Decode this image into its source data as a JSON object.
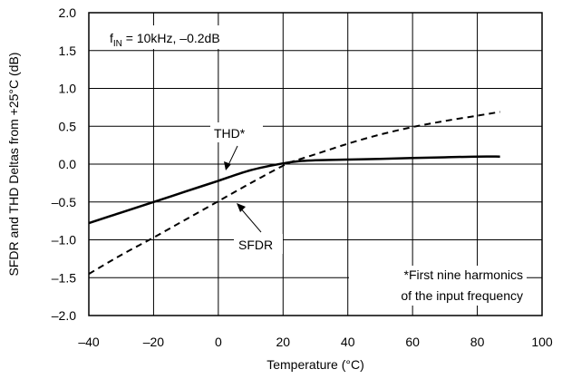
{
  "chart_data": {
    "type": "line",
    "title": "",
    "xlabel": "Temperature (°C)",
    "ylabel": "SFDR and THD Deltas from +25°C (dB)",
    "xlim": [
      -40,
      100
    ],
    "ylim": [
      -2.0,
      2.0
    ],
    "x_ticks": [
      -40,
      -20,
      0,
      20,
      40,
      60,
      80,
      100
    ],
    "y_ticks": [
      -2.0,
      -1.5,
      -1.0,
      -0.5,
      0.0,
      0.5,
      1.0,
      1.5,
      2.0
    ],
    "x_tick_labels": [
      "–40",
      "–20",
      "0",
      "20",
      "40",
      "60",
      "80",
      "100"
    ],
    "y_tick_labels": [
      "–2.0",
      "–1.5",
      "–1.0",
      "–0.5",
      "0.0",
      "0.5",
      "1.0",
      "1.5",
      "2.0"
    ],
    "grid": true,
    "series": [
      {
        "name": "THD*",
        "style": "solid",
        "color": "#000000",
        "x": [
          -40,
          -30,
          -20,
          -10,
          0,
          10,
          20,
          25,
          30,
          40,
          50,
          60,
          70,
          80,
          87
        ],
        "y": [
          -0.78,
          -0.64,
          -0.5,
          -0.36,
          -0.22,
          -0.08,
          0.01,
          0.04,
          0.05,
          0.06,
          0.07,
          0.08,
          0.09,
          0.1,
          0.1
        ]
      },
      {
        "name": "SFDR",
        "style": "dashed",
        "color": "#000000",
        "x": [
          -40,
          -30,
          -20,
          -10,
          0,
          10,
          20,
          22,
          30,
          40,
          50,
          60,
          70,
          80,
          87
        ],
        "y": [
          -1.45,
          -1.2,
          -0.97,
          -0.73,
          -0.49,
          -0.25,
          -0.02,
          0.02,
          0.13,
          0.27,
          0.39,
          0.49,
          0.57,
          0.64,
          0.69
        ]
      }
    ],
    "annotations": {
      "condition_prefix": "f",
      "condition_subscript": "IN",
      "condition_suffix": " = 10kHz, –0.2dB",
      "thd_label": "THD*",
      "sfdr_label": "SFDR",
      "footnote_line1": "*First nine harmonics",
      "footnote_line2": "of the input frequency"
    }
  }
}
